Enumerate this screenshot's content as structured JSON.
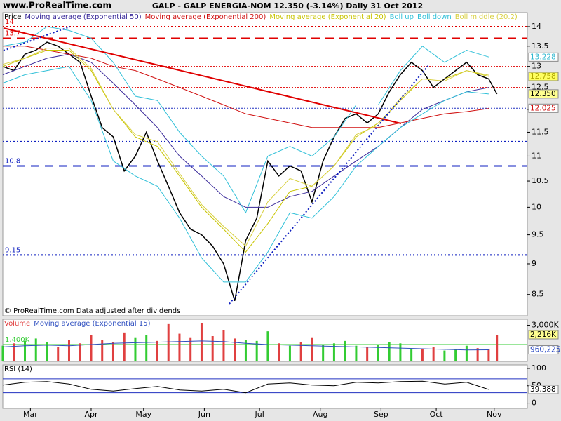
{
  "header": {
    "site": "www.ProRealTime.com",
    "title": "GALP - GALP ENERGIA-NOM    12.350 (-3.14%)    Daily  31 Oct 2012"
  },
  "chart_data": [
    {
      "type": "line",
      "log_scale": true,
      "credit": "© ProRealTime.com  Data adjusted after dividends",
      "xlim": [
        0,
        190
      ],
      "ylim": [
        8.17,
        14.37
      ],
      "xticks": [
        {
          "value": 10,
          "label": "Mar"
        },
        {
          "value": 32,
          "label": "Apr"
        },
        {
          "value": 51,
          "label": "May"
        },
        {
          "value": 73,
          "label": "Jun"
        },
        {
          "value": 93,
          "label": "Jul"
        },
        {
          "value": 115,
          "label": "Aug"
        },
        {
          "value": 137,
          "label": "Sep"
        },
        {
          "value": 157,
          "label": "Oct"
        },
        {
          "value": 178,
          "label": "Nov"
        }
      ],
      "yticks": [
        8.5,
        9,
        9.5,
        10,
        10.5,
        11,
        11.5,
        12,
        12.5,
        13,
        13.5,
        14
      ],
      "series": [
        {
          "name": "Price",
          "color": "#000000",
          "x": [
            0,
            4,
            8,
            12,
            16,
            20,
            24,
            28,
            32,
            36,
            40,
            44,
            48,
            52,
            56,
            60,
            64,
            68,
            72,
            76,
            80,
            84,
            88,
            92,
            96,
            100,
            104,
            108,
            112,
            116,
            120,
            124,
            128,
            132,
            136,
            140,
            144,
            148,
            152,
            156,
            160,
            164,
            168,
            172,
            176,
            179
          ],
          "values": [
            13.0,
            12.9,
            13.3,
            13.4,
            13.6,
            13.5,
            13.3,
            13.1,
            12.3,
            11.6,
            11.4,
            10.7,
            11.0,
            11.5,
            10.9,
            10.4,
            9.9,
            9.6,
            9.5,
            9.3,
            9.0,
            8.4,
            9.4,
            9.8,
            10.9,
            10.6,
            10.8,
            10.7,
            10.1,
            10.9,
            11.4,
            11.8,
            11.9,
            11.7,
            11.9,
            12.4,
            12.8,
            13.1,
            12.9,
            12.5,
            12.7,
            12.9,
            13.1,
            12.8,
            12.7,
            12.35
          ]
        },
        {
          "name": "Moving average (Exponential 50)",
          "color": "#3a2a9a",
          "x": [
            0,
            8,
            16,
            24,
            32,
            40,
            48,
            56,
            64,
            72,
            80,
            88,
            96,
            104,
            112,
            120,
            128,
            136,
            144,
            152,
            160,
            168,
            176
          ],
          "values": [
            12.8,
            13.0,
            13.2,
            13.3,
            13.1,
            12.6,
            12.1,
            11.6,
            11.0,
            10.6,
            10.2,
            10.0,
            10.0,
            10.2,
            10.3,
            10.6,
            10.9,
            11.2,
            11.6,
            12.0,
            12.2,
            12.4,
            12.5
          ]
        },
        {
          "name": "Moving average (Exponential 200)",
          "color": "#d01010",
          "x": [
            0,
            8,
            16,
            24,
            32,
            40,
            48,
            56,
            64,
            72,
            80,
            88,
            96,
            104,
            112,
            120,
            128,
            136,
            144,
            152,
            160,
            168,
            176
          ],
          "values": [
            13.5,
            13.5,
            13.4,
            13.3,
            13.2,
            13.0,
            12.9,
            12.7,
            12.5,
            12.3,
            12.1,
            11.9,
            11.8,
            11.7,
            11.6,
            11.6,
            11.6,
            11.6,
            11.7,
            11.8,
            11.9,
            11.95,
            12.02
          ]
        },
        {
          "name": "Moving average (Exponential 20)",
          "color": "#c8c400",
          "x": [
            0,
            8,
            16,
            24,
            32,
            40,
            48,
            56,
            64,
            72,
            80,
            88,
            96,
            104,
            112,
            120,
            128,
            136,
            144,
            152,
            160,
            168,
            176
          ],
          "values": [
            13.0,
            13.2,
            13.4,
            13.4,
            12.9,
            12.0,
            11.4,
            11.2,
            10.6,
            10.0,
            9.6,
            9.2,
            9.7,
            10.3,
            10.4,
            10.8,
            11.4,
            11.7,
            12.2,
            12.7,
            12.7,
            12.9,
            12.76
          ]
        },
        {
          "name": "Boll up",
          "color": "#30c0d8",
          "x": [
            0,
            8,
            16,
            24,
            32,
            40,
            48,
            56,
            64,
            72,
            80,
            88,
            96,
            104,
            112,
            120,
            128,
            136,
            144,
            152,
            160,
            168,
            176
          ],
          "values": [
            13.5,
            13.6,
            14.0,
            13.9,
            13.7,
            13.1,
            12.3,
            12.2,
            11.5,
            11.0,
            10.6,
            9.9,
            11.0,
            11.2,
            11.0,
            11.4,
            12.1,
            12.1,
            12.9,
            13.5,
            13.1,
            13.4,
            13.23
          ]
        },
        {
          "name": "Boll down",
          "color": "#30c0d8",
          "x": [
            0,
            8,
            16,
            24,
            32,
            40,
            48,
            56,
            64,
            72,
            80,
            88,
            96,
            104,
            112,
            120,
            128,
            136,
            144,
            152,
            160,
            168,
            176
          ],
          "values": [
            12.6,
            12.8,
            12.9,
            13.0,
            12.2,
            10.9,
            10.6,
            10.4,
            9.8,
            9.1,
            8.7,
            8.7,
            9.2,
            9.9,
            9.8,
            10.2,
            10.8,
            11.2,
            11.6,
            11.9,
            12.2,
            12.4,
            12.35
          ]
        },
        {
          "name": "Boll middle (20.2)",
          "color": "#d8d040",
          "x": [
            0,
            8,
            16,
            24,
            32,
            40,
            48,
            56,
            64,
            72,
            80,
            88,
            96,
            104,
            112,
            120,
            128,
            136,
            144,
            152,
            160,
            168,
            176
          ],
          "values": [
            13.05,
            13.2,
            13.45,
            13.45,
            12.95,
            12.0,
            11.45,
            11.3,
            10.65,
            10.05,
            9.65,
            9.3,
            10.1,
            10.55,
            10.4,
            10.8,
            11.45,
            11.65,
            12.25,
            12.7,
            12.65,
            12.9,
            12.79
          ]
        }
      ],
      "levels": [
        {
          "value": 14,
          "color": "#e00000",
          "style": "dotted",
          "show_label": true
        },
        {
          "value": 13.7,
          "color": "#e00000",
          "style": "dashed",
          "show_label": true
        },
        {
          "value": 13,
          "color": "#e00000",
          "style": "fine",
          "show_label": false
        },
        {
          "value": 12.5,
          "color": "#e00000",
          "style": "fine",
          "show_label": false
        },
        {
          "value": 12.025,
          "color": "#2030c0",
          "style": "fine",
          "show_label": false
        },
        {
          "value": 11.3,
          "color": "#1020c0",
          "style": "dotted",
          "show_label": false
        },
        {
          "value": 10.8,
          "color": "#1020c0",
          "style": "dashed",
          "show_label": true
        },
        {
          "value": 9.15,
          "color": "#1020c0",
          "style": "dotted",
          "show_label": true
        }
      ],
      "last_values": [
        {
          "value": 13.228,
          "color": "#30b8d0",
          "bg": "#ffffff"
        },
        {
          "value": 12.758,
          "color": "#b0a800",
          "bg": "#ffff60"
        },
        {
          "value": {
            "value": 12.35,
            "label": "12.350"
          },
          "color": "#000000",
          "bg": "#ffff90"
        },
        {
          "value": 12.025,
          "color": "#d01010",
          "bg": "#ffffff"
        }
      ]
    },
    {
      "type": "bar",
      "xlim": [
        0,
        190
      ],
      "ylim": [
        0,
        3500000
      ],
      "yticks": [
        {
          "value": 3000000,
          "label": "3,000K"
        }
      ],
      "up_color": "#33cc33",
      "down_color": "#e04040",
      "series": [
        {
          "name": "Volume",
          "color": "#e04040",
          "x": [
            0,
            4,
            8,
            12,
            16,
            20,
            24,
            28,
            32,
            36,
            40,
            44,
            48,
            52,
            56,
            60,
            64,
            68,
            72,
            76,
            80,
            84,
            88,
            92,
            96,
            100,
            104,
            108,
            112,
            116,
            120,
            124,
            128,
            132,
            136,
            140,
            144,
            148,
            152,
            156,
            160,
            164,
            168,
            172,
            176,
            179
          ],
          "values": [
            1300000,
            1500000,
            1700000,
            1900000,
            1600000,
            1200000,
            1800000,
            1500000,
            2200000,
            1800000,
            1600000,
            2400000,
            2000000,
            2200000,
            1700000,
            3100000,
            2300000,
            2000000,
            3200000,
            2100000,
            2600000,
            1900000,
            1800000,
            1700000,
            2500000,
            1500000,
            1300000,
            1600000,
            2000000,
            1400000,
            1500000,
            1700000,
            1300000,
            1200000,
            1400000,
            1600000,
            1500000,
            1100000,
            1000000,
            1200000,
            900000,
            1000000,
            1300000,
            1100000,
            1000000,
            2216000
          ]
        },
        {
          "name": "Moving average (Exponential 15)",
          "color": "#3050c0",
          "x": [
            0,
            8,
            16,
            24,
            32,
            40,
            48,
            56,
            64,
            72,
            80,
            88,
            96,
            104,
            112,
            120,
            128,
            136,
            144,
            152,
            160,
            168,
            176
          ],
          "values": [
            1200000,
            1300000,
            1350000,
            1300000,
            1400000,
            1500000,
            1550000,
            1600000,
            1650000,
            1700000,
            1650000,
            1500000,
            1400000,
            1350000,
            1300000,
            1250000,
            1200000,
            1150000,
            1100000,
            1050000,
            1000000,
            950000,
            960225
          ]
        }
      ],
      "levels": [
        {
          "value": {
            "value": 1400000,
            "label": "1,400K"
          },
          "color": "#33cc33",
          "style": "solid",
          "show_label": true
        }
      ],
      "last_values": [
        {
          "value": {
            "value": 2216000,
            "label": "2,216K"
          },
          "color": "#000000",
          "bg": "#ffff90"
        },
        {
          "value": {
            "value": 960225,
            "label": "960,225"
          },
          "color": "#2040c0",
          "bg": "#ffffff"
        }
      ]
    },
    {
      "type": "line",
      "xlim": [
        0,
        190
      ],
      "ylim": [
        -15,
        110
      ],
      "yticks": [
        0,
        50,
        100
      ],
      "series": [
        {
          "name": "RSI (14)",
          "color": "#000000",
          "x": [
            0,
            8,
            16,
            24,
            32,
            40,
            48,
            56,
            64,
            72,
            80,
            88,
            96,
            104,
            112,
            120,
            128,
            136,
            144,
            152,
            160,
            168,
            176
          ],
          "values": [
            52,
            60,
            62,
            55,
            40,
            35,
            42,
            48,
            38,
            35,
            40,
            30,
            55,
            58,
            52,
            50,
            60,
            58,
            62,
            63,
            55,
            60,
            39.388
          ]
        }
      ],
      "levels": [
        {
          "value": 70,
          "color": "#2030c0",
          "style": "solid",
          "show_label": false
        },
        {
          "value": 30,
          "color": "#2030c0",
          "style": "solid",
          "show_label": false
        }
      ],
      "last_values": [
        {
          "value": 39.388,
          "color": "#000000",
          "bg": "#ffffff"
        }
      ]
    }
  ]
}
